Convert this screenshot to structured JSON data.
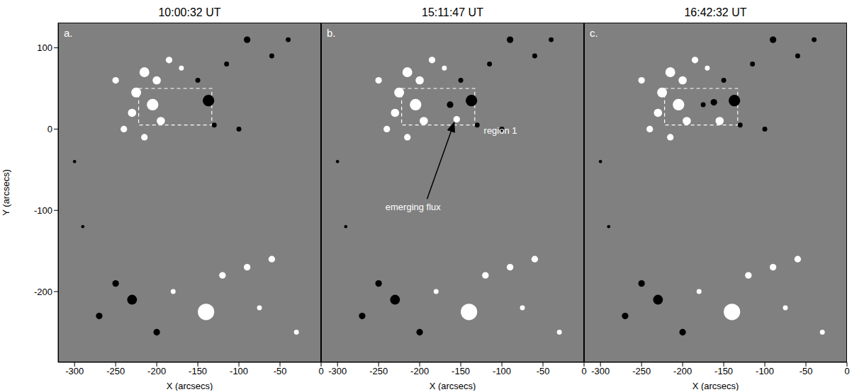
{
  "chart_data": [
    {
      "type": "scatter",
      "title": "10:00:32 UT",
      "panel": "a.",
      "xlim": [
        -320,
        0
      ],
      "ylim": [
        -287,
        131
      ],
      "xticks": [
        -300,
        -250,
        -200,
        -150,
        -100,
        -50,
        0
      ],
      "yticks": [
        -200,
        -100,
        0,
        100
      ],
      "x_label": "X (arcsecs)",
      "y_label": "Y (arcsecs)",
      "x": [
        -215,
        -200,
        -225,
        -205,
        -230,
        -195,
        -240,
        -215,
        -185,
        -170,
        -250,
        -137,
        -150,
        -115,
        -90,
        -60,
        -40,
        -130,
        -100,
        -230,
        -250,
        -270,
        -200,
        -300,
        -290,
        -140,
        -120,
        -90,
        -60,
        -75,
        -180,
        -30
      ],
      "y": [
        70,
        60,
        45,
        30,
        20,
        10,
        0,
        -10,
        85,
        75,
        60,
        35,
        60,
        80,
        110,
        90,
        110,
        5,
        0,
        -210,
        -190,
        -230,
        -250,
        -40,
        -120,
        -225,
        -180,
        -170,
        -160,
        -220,
        -200,
        -250
      ],
      "size": [
        6,
        5,
        6,
        7,
        5,
        5,
        4,
        4,
        4,
        3,
        4,
        7,
        3,
        3,
        4,
        3,
        3,
        3,
        3,
        6,
        4,
        4,
        4,
        2,
        2,
        10,
        4,
        4,
        4,
        3,
        3,
        3
      ],
      "colors": [
        "#ffffff",
        "#ffffff",
        "#ffffff",
        "#ffffff",
        "#ffffff",
        "#ffffff",
        "#ffffff",
        "#ffffff",
        "#ffffff",
        "#ffffff",
        "#ffffff",
        "#000000",
        "#000000",
        "#000000",
        "#000000",
        "#000000",
        "#000000",
        "#000000",
        "#000000",
        "#000000",
        "#000000",
        "#000000",
        "#000000",
        "#000000",
        "#000000",
        "#ffffff",
        "#ffffff",
        "#ffffff",
        "#ffffff",
        "#ffffff",
        "#ffffff",
        "#ffffff"
      ],
      "rectangle": {
        "x": [
          -222,
          -133
        ],
        "y": [
          5,
          50
        ]
      },
      "annotations": []
    },
    {
      "type": "scatter",
      "title": "15:11:47 UT",
      "panel": "b.",
      "xlim": [
        -320,
        0
      ],
      "ylim": [
        -287,
        131
      ],
      "xticks": [
        -300,
        -250,
        -200,
        -150,
        -100,
        -50,
        0
      ],
      "yticks": [
        -200,
        -100,
        0,
        100
      ],
      "x_label": "X (arcsecs)",
      "tick_labels": "x",
      "x": [
        -215,
        -200,
        -225,
        -205,
        -230,
        -195,
        -240,
        -215,
        -185,
        -170,
        -250,
        -137,
        -150,
        -115,
        -90,
        -60,
        -40,
        -130,
        -100,
        -230,
        -250,
        -270,
        -200,
        -300,
        -290,
        -140,
        -120,
        -90,
        -60,
        -75,
        -180,
        -30,
        -163,
        -155
      ],
      "y": [
        70,
        60,
        45,
        30,
        20,
        10,
        0,
        -10,
        85,
        75,
        60,
        35,
        60,
        80,
        110,
        90,
        110,
        5,
        0,
        -210,
        -190,
        -230,
        -250,
        -40,
        -120,
        -225,
        -180,
        -170,
        -160,
        -220,
        -200,
        -250,
        30,
        12
      ],
      "size": [
        6,
        5,
        6,
        7,
        5,
        5,
        4,
        4,
        4,
        3,
        4,
        7,
        3,
        3,
        4,
        3,
        3,
        3,
        3,
        6,
        4,
        4,
        4,
        2,
        2,
        10,
        4,
        4,
        4,
        3,
        3,
        3,
        4,
        4
      ],
      "colors": [
        "#ffffff",
        "#ffffff",
        "#ffffff",
        "#ffffff",
        "#ffffff",
        "#ffffff",
        "#ffffff",
        "#ffffff",
        "#ffffff",
        "#ffffff",
        "#ffffff",
        "#000000",
        "#000000",
        "#000000",
        "#000000",
        "#000000",
        "#000000",
        "#000000",
        "#000000",
        "#000000",
        "#000000",
        "#000000",
        "#000000",
        "#000000",
        "#000000",
        "#ffffff",
        "#ffffff",
        "#ffffff",
        "#ffffff",
        "#ffffff",
        "#ffffff",
        "#ffffff",
        "#000000",
        "#ffffff"
      ],
      "rectangle": {
        "x": [
          -222,
          -133
        ],
        "y": [
          5,
          50
        ]
      },
      "annotations": [
        {
          "text": "region 1",
          "x": -122,
          "y": -3
        },
        {
          "text": "emerging flux",
          "x": -208,
          "y": -97,
          "arrow_from": [
            -191,
            -86
          ],
          "arrow_to": [
            -158,
            8
          ]
        }
      ]
    },
    {
      "type": "scatter",
      "title": "16:42:32 UT",
      "panel": "c.",
      "xlim": [
        -320,
        0
      ],
      "ylim": [
        -287,
        131
      ],
      "xticks": [
        -300,
        -250,
        -200,
        -150,
        -100,
        -50,
        0
      ],
      "yticks": [
        -200,
        -100,
        0,
        100
      ],
      "x_label": "X (arcsecs)",
      "tick_labels": "x",
      "x": [
        -215,
        -200,
        -225,
        -205,
        -230,
        -195,
        -240,
        -215,
        -185,
        -170,
        -250,
        -137,
        -150,
        -115,
        -90,
        -60,
        -40,
        -130,
        -100,
        -230,
        -250,
        -270,
        -200,
        -300,
        -290,
        -140,
        -120,
        -90,
        -60,
        -75,
        -180,
        -30,
        -162,
        -155,
        -175
      ],
      "y": [
        70,
        60,
        45,
        30,
        20,
        10,
        0,
        -10,
        85,
        75,
        60,
        35,
        60,
        80,
        110,
        90,
        110,
        5,
        0,
        -210,
        -190,
        -230,
        -250,
        -40,
        -120,
        -225,
        -180,
        -170,
        -160,
        -220,
        -200,
        -250,
        33,
        10,
        30
      ],
      "size": [
        6,
        5,
        6,
        7,
        5,
        5,
        4,
        4,
        4,
        3,
        4,
        7,
        3,
        3,
        4,
        3,
        3,
        3,
        3,
        6,
        4,
        4,
        4,
        2,
        2,
        10,
        4,
        4,
        4,
        3,
        3,
        3,
        4,
        5,
        3
      ],
      "colors": [
        "#ffffff",
        "#ffffff",
        "#ffffff",
        "#ffffff",
        "#ffffff",
        "#ffffff",
        "#ffffff",
        "#ffffff",
        "#ffffff",
        "#ffffff",
        "#ffffff",
        "#000000",
        "#000000",
        "#000000",
        "#000000",
        "#000000",
        "#000000",
        "#000000",
        "#000000",
        "#000000",
        "#000000",
        "#000000",
        "#000000",
        "#000000",
        "#000000",
        "#ffffff",
        "#ffffff",
        "#ffffff",
        "#ffffff",
        "#ffffff",
        "#ffffff",
        "#ffffff",
        "#000000",
        "#ffffff",
        "#000000"
      ],
      "rectangle": {
        "x": [
          -222,
          -133
        ],
        "y": [
          5,
          50
        ]
      },
      "annotations": []
    }
  ]
}
